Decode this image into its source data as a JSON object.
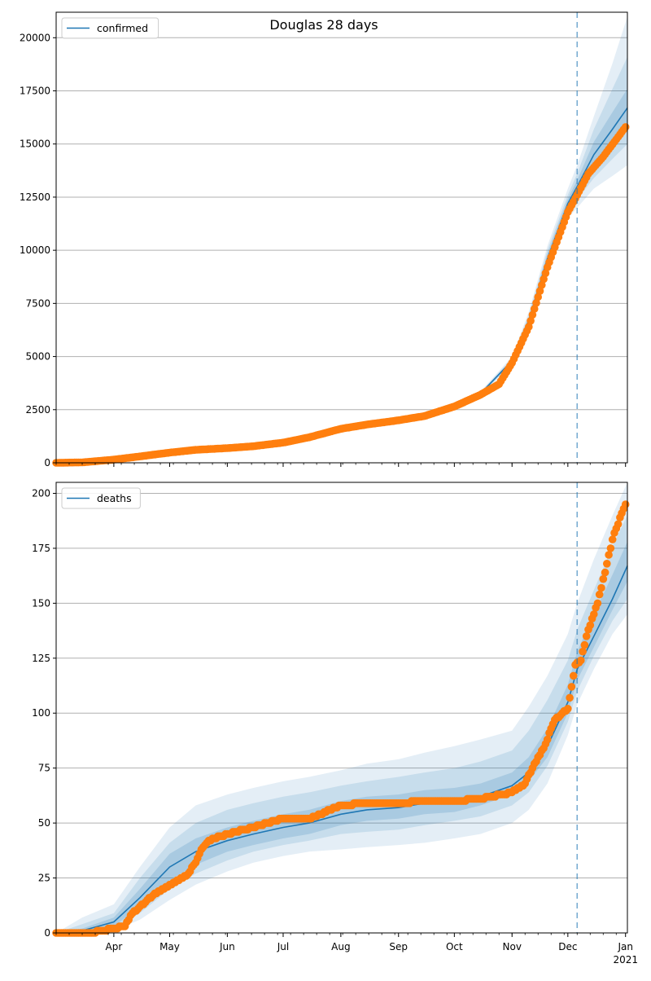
{
  "figure": {
    "suptitle": "Douglas 28 days"
  },
  "chart_data": [
    {
      "type": "line",
      "legend": {
        "label": "confirmed",
        "position": "upper left"
      },
      "grid": {
        "y": true,
        "x": false
      },
      "xlim": [
        "2020-03-01",
        "2021-01-02"
      ],
      "ylim": [
        0,
        21200
      ],
      "yticks": [
        0,
        2500,
        5000,
        7500,
        10000,
        12500,
        15000,
        17500,
        20000
      ],
      "forecast_start": "2020-12-06",
      "model": {
        "dates": [
          "2020-03-01",
          "2020-03-15",
          "2020-04-01",
          "2020-04-15",
          "2020-05-01",
          "2020-05-15",
          "2020-06-01",
          "2020-06-15",
          "2020-07-01",
          "2020-07-15",
          "2020-08-01",
          "2020-08-15",
          "2020-09-01",
          "2020-09-15",
          "2020-10-01",
          "2020-10-15",
          "2020-11-01",
          "2020-11-10",
          "2020-11-20",
          "2020-12-01",
          "2020-12-06",
          "2020-12-15",
          "2020-12-25",
          "2021-01-02"
        ],
        "median": [
          0,
          30,
          170,
          330,
          500,
          610,
          700,
          790,
          930,
          1200,
          1570,
          1810,
          2010,
          2250,
          2650,
          3250,
          4800,
          6700,
          9600,
          12200,
          13000,
          14500,
          15700,
          16700
        ],
        "bands": [
          {
            "lo": [
              0,
              25,
              150,
              300,
              470,
              580,
              670,
              760,
              900,
              1170,
              1530,
              1770,
              1970,
              2200,
              2600,
              3150,
              4600,
              6300,
              9000,
              11500,
              12000,
              12900,
              13500,
              14000
            ],
            "hi": [
              0,
              35,
              190,
              360,
              530,
              640,
              730,
              820,
              960,
              1230,
              1610,
              1850,
              2050,
              2300,
              2700,
              3350,
              5000,
              7100,
              10200,
              12900,
              14000,
              16300,
              18800,
              21000
            ]
          },
          {
            "lo": [
              0,
              27,
              158,
              310,
              480,
              590,
              680,
              770,
              910,
              1180,
              1545,
              1785,
              1985,
              2215,
              2615,
              3185,
              4680,
              6450,
              9200,
              11800,
              12400,
              13400,
              14300,
              15000
            ],
            "hi": [
              0,
              33,
              182,
              350,
              520,
              630,
              720,
              810,
              950,
              1220,
              1595,
              1835,
              2035,
              2285,
              2685,
              3315,
              4920,
              6950,
              10000,
              12600,
              13600,
              15700,
              17600,
              19100
            ]
          },
          {
            "lo": [
              0,
              28,
              163,
              318,
              488,
              598,
              688,
              778,
              918,
              1188,
              1555,
              1795,
              1995,
              2230,
              2630,
              3215,
              4740,
              6570,
              9380,
              11980,
              12700,
              13900,
              14900,
              15800
            ],
            "hi": [
              0,
              32,
              177,
              342,
              512,
              622,
              712,
              802,
              942,
              1212,
              1585,
              1825,
              2025,
              2270,
              2670,
              3285,
              4860,
              6830,
              9820,
              12420,
              13300,
              15100,
              16500,
              17600
            ]
          }
        ]
      },
      "observed": {
        "dates": [
          "2020-03-01",
          "2020-03-15",
          "2020-04-01",
          "2020-04-15",
          "2020-05-01",
          "2020-05-15",
          "2020-06-01",
          "2020-06-15",
          "2020-07-01",
          "2020-07-15",
          "2020-08-01",
          "2020-08-15",
          "2020-09-01",
          "2020-09-15",
          "2020-10-01",
          "2020-10-15",
          "2020-10-25",
          "2020-11-01",
          "2020-11-10",
          "2020-11-20",
          "2020-12-01",
          "2020-12-06",
          "2020-12-12",
          "2020-12-20",
          "2020-12-26",
          "2021-01-01"
        ],
        "values": [
          0,
          20,
          150,
          300,
          480,
          610,
          690,
          780,
          950,
          1200,
          1600,
          1800,
          2000,
          2200,
          2650,
          3200,
          3700,
          4700,
          6400,
          9200,
          11800,
          12600,
          13600,
          14400,
          15100,
          15800
        ]
      }
    },
    {
      "type": "line",
      "legend": {
        "label": "deaths",
        "position": "upper left"
      },
      "grid": {
        "y": true,
        "x": false
      },
      "xlim": [
        "2020-03-01",
        "2021-01-02"
      ],
      "ylim": [
        0,
        205
      ],
      "yticks": [
        0,
        25,
        50,
        75,
        100,
        125,
        150,
        175,
        200
      ],
      "xticklabels": [
        "Apr",
        "May",
        "Jun",
        "Jul",
        "Aug",
        "Sep",
        "Oct",
        "Nov",
        "Dec",
        "Jan"
      ],
      "xticks": [
        "2020-04-01",
        "2020-05-01",
        "2020-06-01",
        "2020-07-01",
        "2020-08-01",
        "2020-09-01",
        "2020-10-01",
        "2020-11-01",
        "2020-12-01",
        "2021-01-01"
      ],
      "xyear_label": "2021",
      "forecast_start": "2020-12-06",
      "model": {
        "dates": [
          "2020-03-01",
          "2020-03-15",
          "2020-04-01",
          "2020-04-15",
          "2020-05-01",
          "2020-05-15",
          "2020-06-01",
          "2020-06-15",
          "2020-07-01",
          "2020-07-15",
          "2020-08-01",
          "2020-08-15",
          "2020-09-01",
          "2020-09-15",
          "2020-10-01",
          "2020-10-15",
          "2020-11-01",
          "2020-11-10",
          "2020-11-20",
          "2020-12-01",
          "2020-12-06",
          "2020-12-15",
          "2020-12-25",
          "2021-01-02"
        ],
        "median": [
          0,
          1,
          5,
          16,
          30,
          37,
          42,
          45,
          48,
          50,
          54,
          56,
          57,
          59,
          60,
          62,
          67,
          73,
          85,
          105,
          120,
          135,
          152,
          167
        ],
        "bands": [
          {
            "lo": [
              0,
              0,
              1,
              6,
              15,
              22,
              28,
              32,
              35,
              37,
              38,
              39,
              40,
              41,
              43,
              45,
              50,
              56,
              68,
              90,
              104,
              120,
              136,
              145
            ],
            "hi": [
              0,
              7,
              13,
              30,
              48,
              58,
              63,
              66,
              69,
              71,
              74,
              77,
              79,
              82,
              85,
              88,
              92,
              103,
              117,
              136,
              150,
              170,
              190,
              205
            ]
          },
          {
            "lo": [
              0,
              0,
              2,
              9,
              20,
              27,
              33,
              37,
              40,
              42,
              45,
              46,
              47,
              49,
              51,
              53,
              58,
              64,
              76,
              96,
              110,
              126,
              142,
              152
            ],
            "hi": [
              0,
              4,
              9,
              25,
              41,
              50,
              56,
              59,
              62,
              64,
              67,
              69,
              71,
              73,
              75,
              78,
              83,
              92,
              106,
              124,
              138,
              156,
              176,
              190
            ]
          },
          {
            "lo": [
              0,
              0,
              3,
              12,
              24,
              31,
              37,
              40,
              43,
              45,
              49,
              51,
              52,
              54,
              55,
              58,
              63,
              69,
              80,
              100,
              115,
              130,
              147,
              160
            ],
            "hi": [
              0,
              2,
              7,
              20,
              36,
              43,
              48,
              51,
              54,
              56,
              60,
              62,
              63,
              65,
              66,
              68,
              73,
              80,
              93,
              113,
              128,
              145,
              163,
              178
            ]
          }
        ]
      },
      "observed": {
        "dates": [
          "2020-03-01",
          "2020-03-20",
          "2020-04-01",
          "2020-04-07",
          "2020-04-10",
          "2020-04-15",
          "2020-04-22",
          "2020-05-01",
          "2020-05-10",
          "2020-05-15",
          "2020-05-18",
          "2020-05-22",
          "2020-06-01",
          "2020-06-15",
          "2020-07-01",
          "2020-07-15",
          "2020-08-01",
          "2020-08-15",
          "2020-09-01",
          "2020-09-15",
          "2020-10-01",
          "2020-10-15",
          "2020-11-01",
          "2020-11-08",
          "2020-11-13",
          "2020-11-18",
          "2020-11-24",
          "2020-12-01",
          "2020-12-05",
          "2020-12-08",
          "2020-12-12",
          "2020-12-17",
          "2020-12-22",
          "2020-12-26",
          "2021-01-01"
        ],
        "values": [
          0,
          0,
          2,
          3,
          8,
          12,
          17,
          22,
          26,
          32,
          38,
          42,
          45,
          48,
          52,
          52,
          58,
          59,
          59,
          60,
          60,
          61,
          64,
          68,
          77,
          84,
          97,
          102,
          122,
          124,
          138,
          150,
          168,
          182,
          195
        ]
      }
    }
  ]
}
